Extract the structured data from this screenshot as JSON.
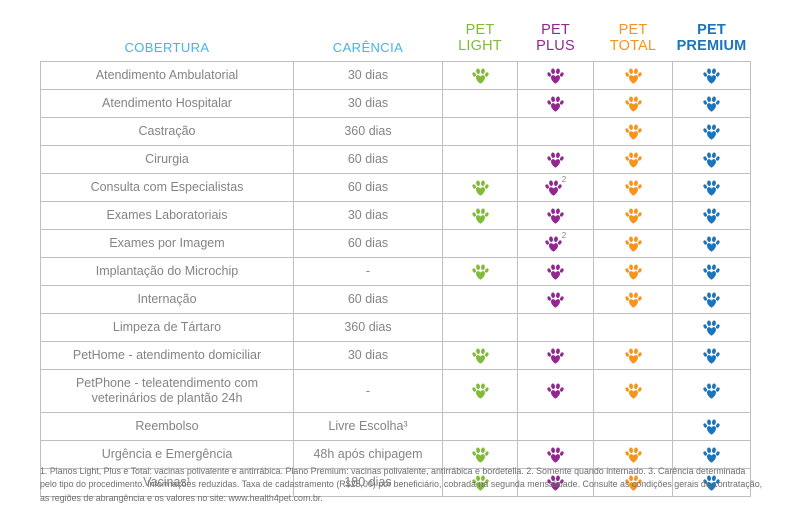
{
  "table": {
    "columns": {
      "cobertura_label": "COBERTURA",
      "carencia_label": "CARÊNCIA",
      "header_color": "#41B6E8"
    },
    "plans": [
      {
        "key": "light",
        "line1": "PET",
        "line2": "LIGHT",
        "color": "#80BC3A",
        "bold": false
      },
      {
        "key": "plus",
        "line1": "PET",
        "line2": "PLUS",
        "color": "#92278F",
        "bold": false
      },
      {
        "key": "total",
        "line1": "PET",
        "line2": "TOTAL",
        "color": "#F7941E",
        "bold": false
      },
      {
        "key": "premium",
        "line1": "PET",
        "line2": "PREMIUM",
        "color": "#1B75BB",
        "bold": true
      }
    ],
    "rows": [
      {
        "cobertura": "Atendimento Ambulatorial",
        "carencia": "30 dias",
        "paws": {
          "light": true,
          "plus": true,
          "total": true,
          "premium": true
        }
      },
      {
        "cobertura": "Atendimento Hospitalar",
        "carencia": "30 dias",
        "paws": {
          "light": false,
          "plus": true,
          "total": true,
          "premium": true
        }
      },
      {
        "cobertura": "Castração",
        "carencia": "360 dias",
        "paws": {
          "light": false,
          "plus": false,
          "total": true,
          "premium": true
        }
      },
      {
        "cobertura": "Cirurgia",
        "carencia": "60 dias",
        "paws": {
          "light": false,
          "plus": true,
          "total": true,
          "premium": true
        }
      },
      {
        "cobertura": "Consulta com Especialistas",
        "carencia": "60 dias",
        "paws": {
          "light": true,
          "plus": true,
          "total": true,
          "premium": true
        },
        "notes": {
          "plus": "2"
        }
      },
      {
        "cobertura": "Exames Laboratoriais",
        "carencia": "30 dias",
        "paws": {
          "light": true,
          "plus": true,
          "total": true,
          "premium": true
        }
      },
      {
        "cobertura": "Exames por Imagem",
        "carencia": "60 dias",
        "paws": {
          "light": false,
          "plus": true,
          "total": true,
          "premium": true
        },
        "notes": {
          "plus": "2"
        }
      },
      {
        "cobertura": "Implantação do Microchip",
        "carencia": "-",
        "paws": {
          "light": true,
          "plus": true,
          "total": true,
          "premium": true
        }
      },
      {
        "cobertura": "Internação",
        "carencia": "60 dias",
        "paws": {
          "light": false,
          "plus": true,
          "total": true,
          "premium": true
        }
      },
      {
        "cobertura": "Limpeza de Tártaro",
        "carencia": "360 dias",
        "paws": {
          "light": false,
          "plus": false,
          "total": false,
          "premium": true
        }
      },
      {
        "cobertura": "PetHome - atendimento domiciliar",
        "carencia": "30 dias",
        "paws": {
          "light": true,
          "plus": true,
          "total": true,
          "premium": true
        }
      },
      {
        "cobertura": "PetPhone - teleatendimento com veterinários de plantão 24h",
        "carencia": "-",
        "tall": true,
        "paws": {
          "light": true,
          "plus": true,
          "total": true,
          "premium": true
        }
      },
      {
        "cobertura": "Reembolso",
        "carencia": "Livre Escolha³",
        "paws": {
          "light": false,
          "plus": false,
          "total": false,
          "premium": true
        }
      },
      {
        "cobertura": "Urgência e Emergência",
        "carencia": "48h após chipagem",
        "paws": {
          "light": true,
          "plus": true,
          "total": true,
          "premium": true
        }
      },
      {
        "cobertura": "Vacinas¹",
        "carencia": "180 dias",
        "paws": {
          "light": true,
          "plus": true,
          "total": true,
          "premium": true
        }
      }
    ]
  },
  "footnote": {
    "text": "1. Planos Light, Plus e Total: vacinas polivalente e antirrábica. Plano Premium: vacinas polivalente, antirrábica e bordetella. 2. Somente quando internado. 3. Carência determinada pelo tipo do procedimento. Informações reduzidas. Taxa de cadastramento (R$25,00) por beneficiário, cobrada na segunda mensalidade. Consulte as condições gerais de contratação, as regiões de abrangência e os valores no site: www.health4pet.com.br."
  }
}
